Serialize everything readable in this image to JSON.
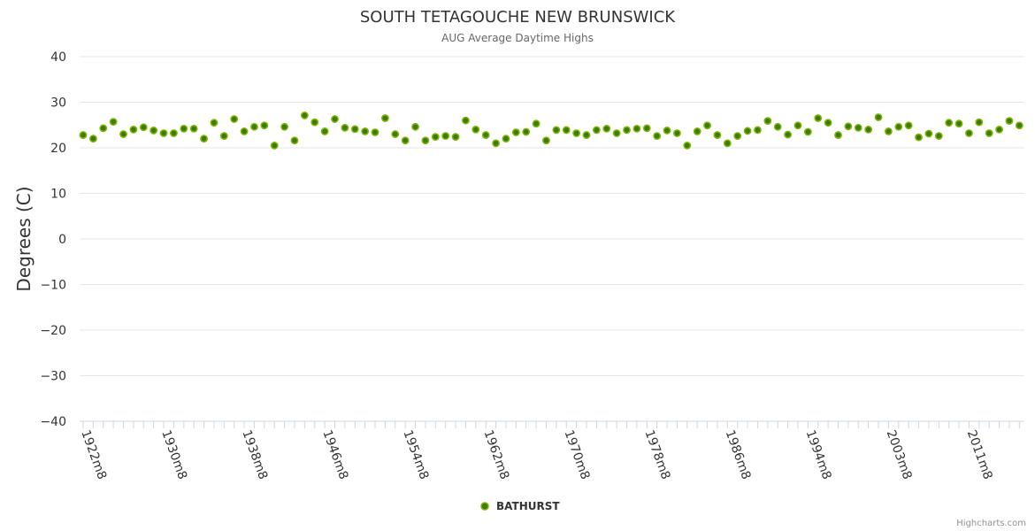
{
  "chart_data": {
    "type": "scatter",
    "title": "SOUTH TETAGOUCHE NEW BRUNSWICK",
    "subtitle": "AUG Average Daytime Highs",
    "ylabel": "Degrees (C)",
    "xlabel": "",
    "ylim": [
      -40,
      40
    ],
    "yticks": [
      "40",
      "30",
      "20",
      "10",
      "0",
      "−10",
      "−20",
      "−30",
      "−40"
    ],
    "ytick_values": [
      40,
      30,
      20,
      10,
      0,
      -10,
      -20,
      -30,
      -40
    ],
    "x_tick_labels": [
      "1922m8",
      "1930m8",
      "1938m8",
      "1946m8",
      "1954m8",
      "1962m8",
      "1970m8",
      "1978m8",
      "1986m8",
      "1994m8",
      "2003m8",
      "2011m8"
    ],
    "x_tick_indices": [
      0,
      8,
      16,
      24,
      32,
      40,
      48,
      56,
      64,
      72,
      80,
      88
    ],
    "grid": true,
    "legend_position": "bottom-center",
    "series": [
      {
        "name": "BATHURST",
        "color": "#7cb500",
        "values": [
          22.8,
          22.0,
          24.3,
          25.7,
          23.0,
          24.0,
          24.5,
          23.8,
          23.2,
          23.2,
          24.2,
          24.2,
          22.0,
          25.5,
          22.6,
          26.3,
          23.6,
          24.6,
          24.9,
          20.5,
          24.6,
          21.6,
          27.1,
          25.6,
          23.6,
          26.3,
          24.4,
          24.1,
          23.6,
          23.4,
          26.5,
          23.0,
          21.6,
          24.6,
          21.6,
          22.4,
          22.6,
          22.4,
          26.0,
          24.0,
          22.8,
          21.0,
          22.0,
          23.4,
          23.5,
          25.3,
          21.6,
          23.9,
          23.9,
          23.2,
          22.8,
          23.9,
          24.2,
          23.2,
          23.9,
          24.2,
          24.3,
          22.6,
          23.8,
          23.2,
          20.5,
          23.6,
          24.9,
          22.8,
          21.0,
          22.6,
          23.7,
          23.9,
          25.9,
          24.6,
          22.9,
          24.9,
          23.5,
          26.5,
          25.5,
          22.8,
          24.7,
          24.4,
          24.0,
          26.7,
          23.6,
          24.6,
          24.9,
          22.3,
          23.1,
          22.6,
          25.5,
          25.3,
          23.2,
          25.6,
          23.2,
          24.0,
          25.9,
          24.9
        ]
      }
    ],
    "credits": "Highcharts.com"
  }
}
